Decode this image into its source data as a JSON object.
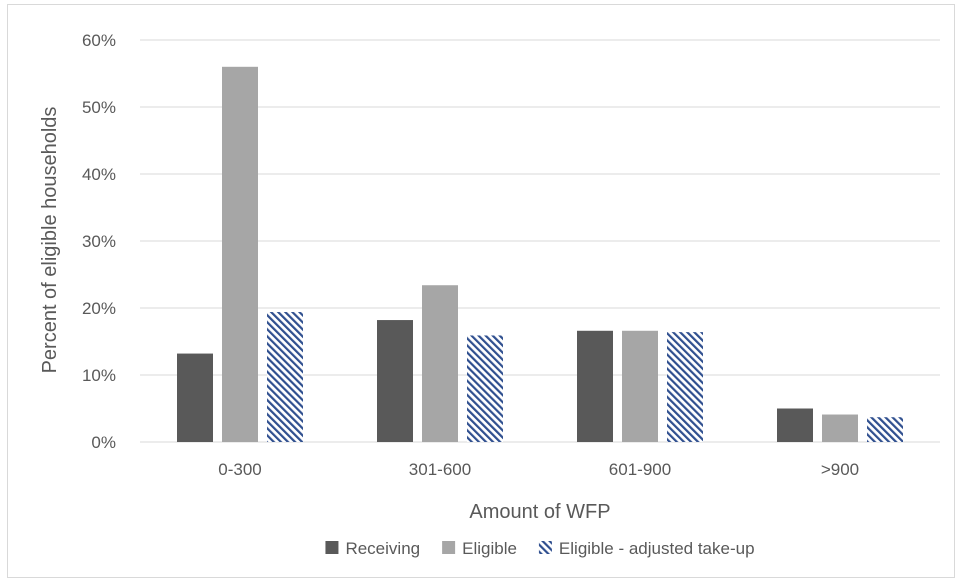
{
  "chart_data": {
    "type": "bar",
    "title": "",
    "xlabel": "Amount of WFP",
    "ylabel": "Percent of eligible households",
    "categories": [
      "0-300",
      "301-600",
      "601-900",
      ">900"
    ],
    "series": [
      {
        "name": "Receiving",
        "values": [
          13.2,
          18.2,
          16.6,
          5.0
        ],
        "color": "#595959",
        "pattern": "solid"
      },
      {
        "name": "Eligible",
        "values": [
          56.0,
          23.4,
          16.6,
          4.1
        ],
        "color": "#a6a6a6",
        "pattern": "solid"
      },
      {
        "name": "Eligible - adjusted take-up",
        "values": [
          19.4,
          15.9,
          16.4,
          3.7
        ],
        "color": "#2f4f8f",
        "pattern": "diagonal-hatch"
      }
    ],
    "ylim": [
      0,
      60
    ],
    "yticks": [
      "0%",
      "10%",
      "20%",
      "30%",
      "40%",
      "50%",
      "60%"
    ],
    "grid": true,
    "legend_position": "bottom"
  }
}
